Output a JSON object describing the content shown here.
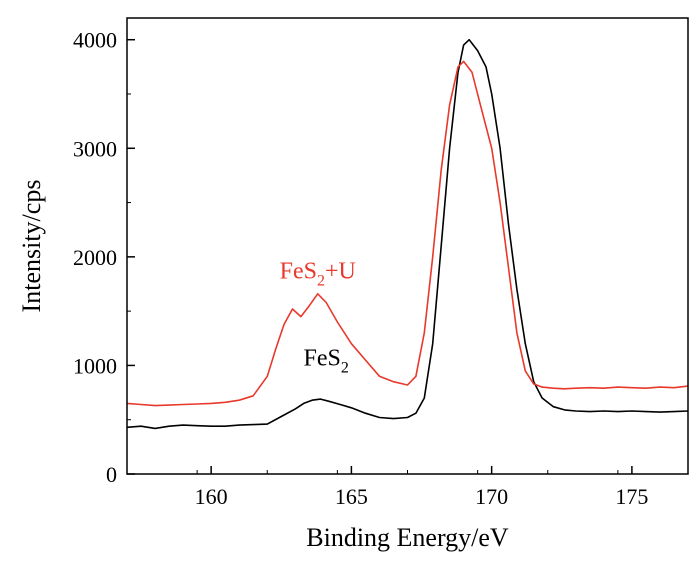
{
  "chart_data": {
    "type": "line",
    "title": "",
    "xlabel": "Binding Energy/eV",
    "ylabel": "Intensity/cps",
    "xlim": [
      157,
      177
    ],
    "ylim": [
      0,
      4200
    ],
    "xticks": [
      160,
      165,
      170,
      175
    ],
    "yticks": [
      0,
      1000,
      2000,
      3000,
      4000
    ],
    "grid": false,
    "series": [
      {
        "name": "FeS2",
        "label_parts": [
          "FeS",
          "2",
          ""
        ],
        "color": "#000000",
        "points": [
          [
            157.0,
            430
          ],
          [
            157.5,
            440
          ],
          [
            158.0,
            420
          ],
          [
            158.5,
            440
          ],
          [
            159.0,
            450
          ],
          [
            159.5,
            445
          ],
          [
            160.0,
            440
          ],
          [
            160.5,
            440
          ],
          [
            161.0,
            450
          ],
          [
            161.5,
            455
          ],
          [
            162.0,
            460
          ],
          [
            162.5,
            530
          ],
          [
            163.0,
            600
          ],
          [
            163.3,
            650
          ],
          [
            163.6,
            680
          ],
          [
            163.9,
            690
          ],
          [
            164.2,
            670
          ],
          [
            164.6,
            640
          ],
          [
            165.0,
            610
          ],
          [
            165.5,
            560
          ],
          [
            166.0,
            520
          ],
          [
            166.5,
            510
          ],
          [
            167.0,
            520
          ],
          [
            167.3,
            560
          ],
          [
            167.6,
            700
          ],
          [
            167.9,
            1200
          ],
          [
            168.2,
            2100
          ],
          [
            168.5,
            3000
          ],
          [
            168.8,
            3700
          ],
          [
            169.0,
            3950
          ],
          [
            169.2,
            4000
          ],
          [
            169.5,
            3900
          ],
          [
            169.8,
            3750
          ],
          [
            170.0,
            3500
          ],
          [
            170.3,
            3000
          ],
          [
            170.6,
            2300
          ],
          [
            170.9,
            1700
          ],
          [
            171.2,
            1200
          ],
          [
            171.5,
            850
          ],
          [
            171.8,
            700
          ],
          [
            172.2,
            620
          ],
          [
            172.6,
            590
          ],
          [
            173.0,
            580
          ],
          [
            173.5,
            575
          ],
          [
            174.0,
            580
          ],
          [
            174.5,
            575
          ],
          [
            175.0,
            580
          ],
          [
            175.5,
            575
          ],
          [
            176.0,
            570
          ],
          [
            176.5,
            575
          ],
          [
            177.0,
            580
          ]
        ]
      },
      {
        "name": "FeS2+U",
        "label_parts": [
          "FeS",
          "2",
          "+U"
        ],
        "color": "#e8392b",
        "points": [
          [
            157.0,
            650
          ],
          [
            157.5,
            640
          ],
          [
            158.0,
            630
          ],
          [
            158.5,
            635
          ],
          [
            159.0,
            640
          ],
          [
            159.5,
            645
          ],
          [
            160.0,
            650
          ],
          [
            160.5,
            660
          ],
          [
            161.0,
            680
          ],
          [
            161.5,
            720
          ],
          [
            162.0,
            900
          ],
          [
            162.3,
            1150
          ],
          [
            162.6,
            1380
          ],
          [
            162.9,
            1520
          ],
          [
            163.2,
            1450
          ],
          [
            163.5,
            1550
          ],
          [
            163.8,
            1660
          ],
          [
            164.1,
            1580
          ],
          [
            164.5,
            1400
          ],
          [
            165.0,
            1200
          ],
          [
            165.5,
            1050
          ],
          [
            166.0,
            900
          ],
          [
            166.5,
            850
          ],
          [
            167.0,
            820
          ],
          [
            167.3,
            900
          ],
          [
            167.6,
            1300
          ],
          [
            167.9,
            2000
          ],
          [
            168.2,
            2800
          ],
          [
            168.5,
            3400
          ],
          [
            168.8,
            3750
          ],
          [
            169.0,
            3800
          ],
          [
            169.3,
            3700
          ],
          [
            169.6,
            3400
          ],
          [
            170.0,
            3000
          ],
          [
            170.3,
            2500
          ],
          [
            170.6,
            1900
          ],
          [
            170.9,
            1300
          ],
          [
            171.2,
            950
          ],
          [
            171.5,
            830
          ],
          [
            171.8,
            800
          ],
          [
            172.2,
            790
          ],
          [
            172.6,
            785
          ],
          [
            173.0,
            790
          ],
          [
            173.5,
            795
          ],
          [
            174.0,
            790
          ],
          [
            174.5,
            800
          ],
          [
            175.0,
            795
          ],
          [
            175.5,
            790
          ],
          [
            176.0,
            800
          ],
          [
            176.5,
            795
          ],
          [
            177.0,
            810
          ]
        ]
      }
    ],
    "annotations": [
      {
        "series": "FeS2+U",
        "anchor_x": 163.8,
        "anchor_y": 1800
      },
      {
        "series": "FeS2",
        "anchor_x": 164.1,
        "anchor_y": 1000
      }
    ]
  }
}
